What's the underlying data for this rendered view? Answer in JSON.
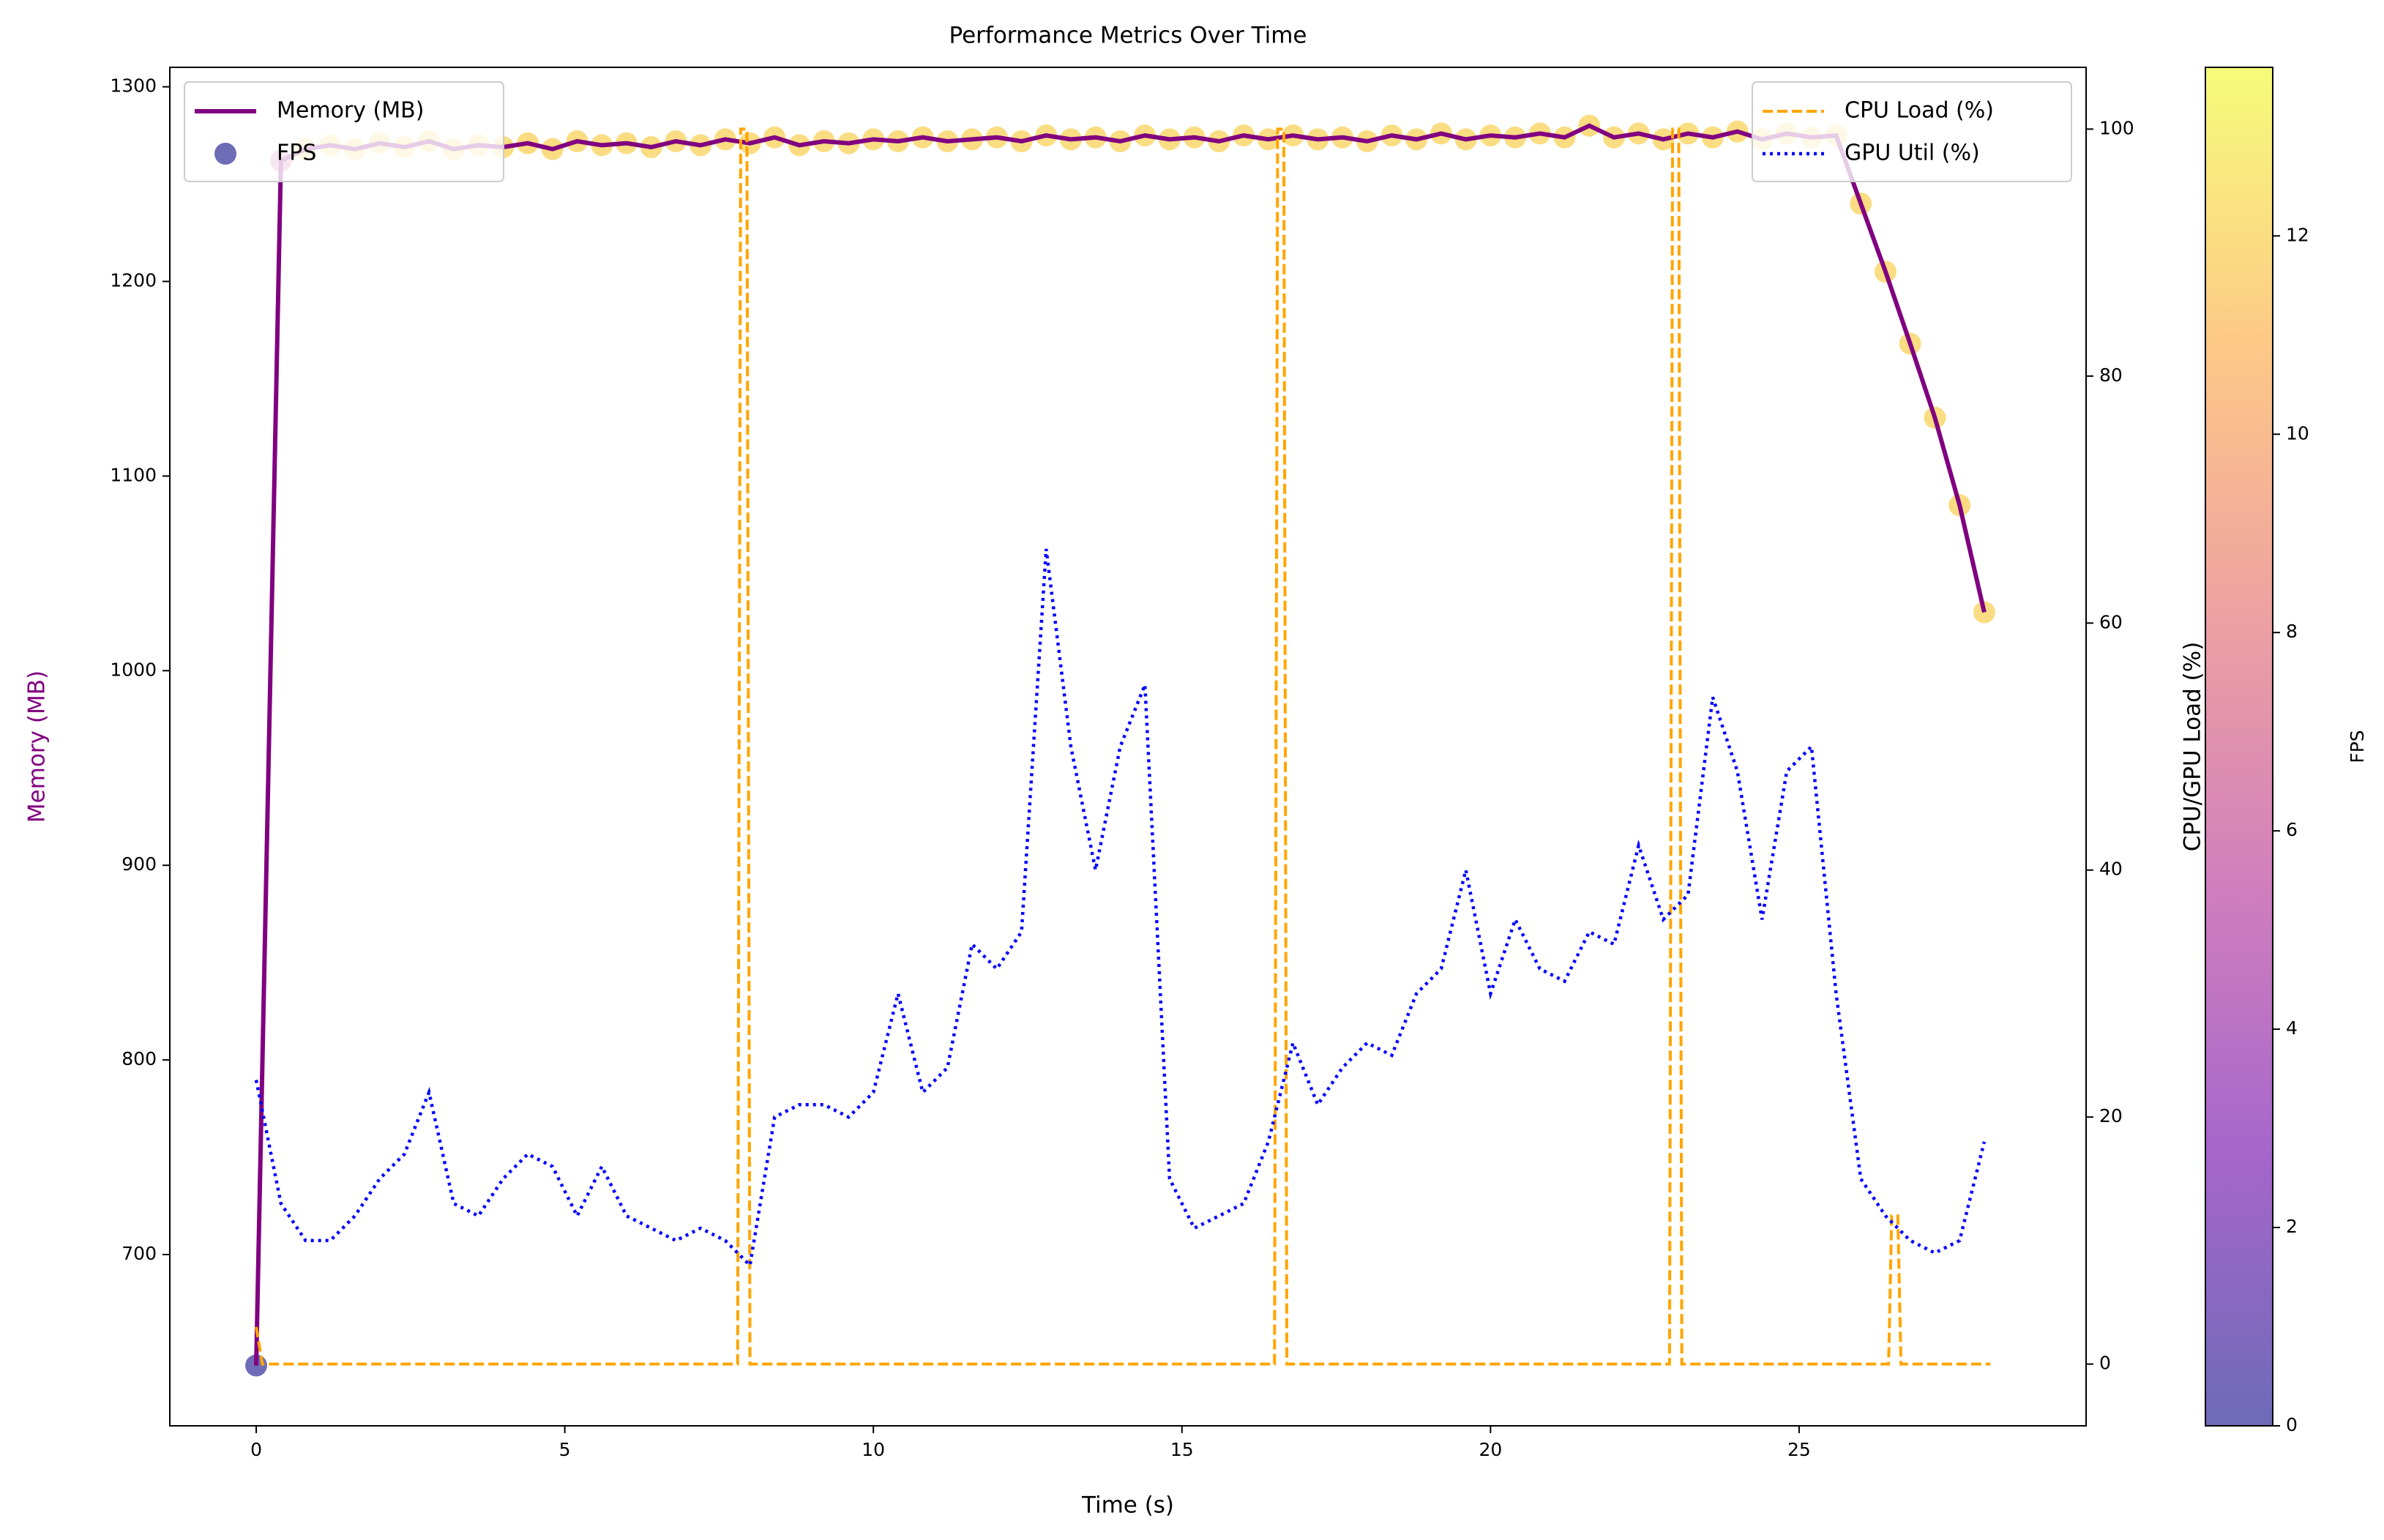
{
  "chart_data": {
    "type": "combo",
    "title": "Performance Metrics Over Time",
    "x_label": "Time (s)",
    "y_label": "Memory (MB)",
    "y2_label": "CPU/GPU Load (%)",
    "x": [
      0,
      0.4,
      0.8,
      1.2,
      1.6,
      2.0,
      2.4,
      2.8,
      3.2,
      3.6,
      4.0,
      4.4,
      4.8,
      5.2,
      5.6,
      6.0,
      6.4,
      6.8,
      7.2,
      7.6,
      8.0,
      8.4,
      8.8,
      9.2,
      9.6,
      10.0,
      10.4,
      10.8,
      11.2,
      11.6,
      12.0,
      12.4,
      12.8,
      13.2,
      13.6,
      14.0,
      14.4,
      14.8,
      15.2,
      15.6,
      16.0,
      16.4,
      16.8,
      17.2,
      17.6,
      18.0,
      18.4,
      18.8,
      19.2,
      19.6,
      20.0,
      20.4,
      20.8,
      21.2,
      21.6,
      22.0,
      22.4,
      22.8,
      23.2,
      23.6,
      24.0,
      24.4,
      24.8,
      25.2,
      25.6,
      26.0,
      26.4,
      26.8,
      27.2,
      27.6,
      28.0
    ],
    "series": [
      {
        "name": "Memory (MB)",
        "type": "line",
        "axis": "y",
        "color": "#800080",
        "style": "solid",
        "values": [
          643,
          1262,
          1268,
          1270,
          1268,
          1271,
          1269,
          1272,
          1268,
          1270,
          1269,
          1271,
          1268,
          1272,
          1270,
          1271,
          1269,
          1272,
          1270,
          1273,
          1271,
          1274,
          1270,
          1272,
          1271,
          1273,
          1272,
          1274,
          1272,
          1273,
          1274,
          1272,
          1275,
          1273,
          1274,
          1272,
          1275,
          1273,
          1274,
          1272,
          1275,
          1273,
          1275,
          1273,
          1274,
          1272,
          1275,
          1273,
          1276,
          1273,
          1275,
          1274,
          1276,
          1274,
          1280,
          1274,
          1276,
          1273,
          1276,
          1274,
          1277,
          1273,
          1276,
          1274,
          1275,
          1240,
          1205,
          1168,
          1130,
          1085,
          1030
        ]
      },
      {
        "name": "FPS",
        "type": "scatter",
        "axis": "y",
        "colormap": "plasma",
        "values": [
          0,
          6,
          12,
          12,
          12,
          12,
          12,
          12,
          12,
          12,
          12,
          12,
          12,
          12,
          12,
          12,
          12,
          12,
          12,
          12,
          12,
          12,
          12,
          12,
          12,
          12,
          12,
          12,
          12,
          12,
          12,
          12,
          12,
          12,
          12,
          12,
          12,
          12,
          12,
          12,
          12,
          12,
          12,
          12,
          12,
          12,
          12,
          12,
          12,
          12,
          12,
          12,
          12,
          12,
          12,
          12,
          12,
          12,
          12,
          12,
          12,
          12,
          12,
          12,
          12,
          12,
          12,
          12,
          12,
          12,
          12
        ]
      },
      {
        "name": "CPU Load (%)",
        "type": "line",
        "axis": "y2",
        "color": "#ffa500",
        "style": "dashed",
        "x": [
          0,
          0.1,
          7.8,
          7.85,
          7.95,
          8.0,
          16.5,
          16.55,
          16.65,
          16.7,
          22.9,
          22.95,
          23.05,
          23.1,
          26.45,
          26.5,
          26.6,
          26.65,
          28.1
        ],
        "values": [
          3,
          0,
          0,
          100,
          100,
          0,
          0,
          100,
          100,
          0,
          0,
          100,
          100,
          0,
          0,
          12,
          12,
          0,
          0
        ]
      },
      {
        "name": "GPU Util (%)",
        "type": "line",
        "axis": "y2",
        "color": "#0000ff",
        "style": "dotted",
        "values": [
          23,
          13,
          10,
          10,
          12,
          15,
          17,
          22,
          13,
          12,
          15,
          17,
          16,
          12,
          16,
          12,
          11,
          10,
          11,
          10,
          8,
          20,
          21,
          21,
          20,
          22,
          30,
          22,
          24,
          34,
          32,
          35,
          66,
          50,
          40,
          50,
          55,
          15,
          11,
          12,
          13,
          18,
          26,
          21,
          24,
          26,
          25,
          30,
          32,
          40,
          30,
          36,
          32,
          31,
          35,
          34,
          42,
          36,
          38,
          54,
          48,
          36,
          48,
          50,
          30,
          15,
          12,
          10,
          9,
          10,
          18
        ]
      }
    ],
    "xlim": [
      -1.4,
      29.65
    ],
    "xticks": [
      0,
      5,
      10,
      15,
      20,
      25
    ],
    "ylim": [
      612,
      1310
    ],
    "yticks": [
      700,
      800,
      900,
      1000,
      1100,
      1200,
      1300
    ],
    "y2lim": [
      -5,
      105
    ],
    "y2ticks": [
      0,
      20,
      40,
      60,
      80,
      100
    ],
    "colorbar": {
      "label": "FPS",
      "lim": [
        0,
        13.7
      ],
      "ticks": [
        0,
        2,
        4,
        6,
        8,
        10,
        12
      ]
    },
    "legend": {
      "y": "upper left",
      "y2": "upper right"
    },
    "grid": false
  }
}
